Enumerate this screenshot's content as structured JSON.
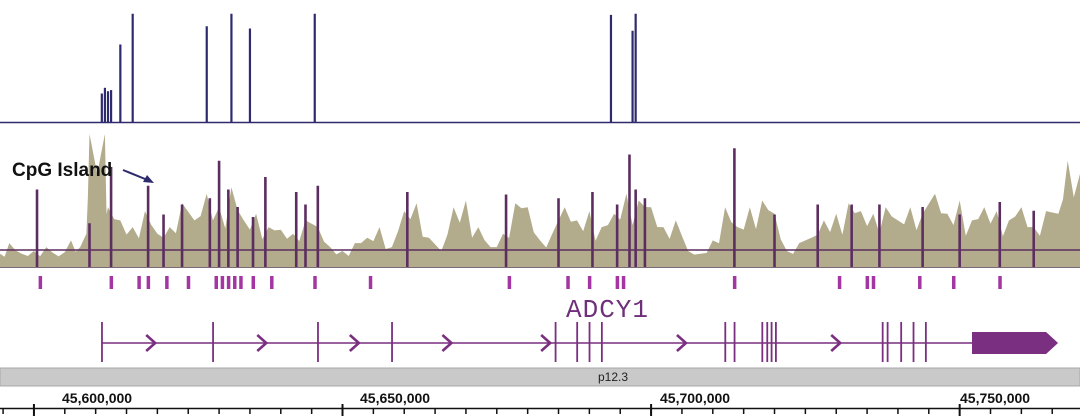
{
  "genome_view": {
    "cpg_label": "CpG Island",
    "gene_label": "ADCY1",
    "cytoband_label": "p12.3",
    "coordinates": [
      "45,600,000",
      "45,650,000",
      "45,700,000",
      "45,750,000"
    ],
    "coordinate_values": [
      45600000,
      45650000,
      45700000,
      45750000
    ],
    "view_range": [
      45594500,
      45769500
    ],
    "colors": {
      "top_track": "#2e2a6e",
      "coverage_fill": "#b2ab8c",
      "signal": "#5c2e60",
      "gene": "#7a2f80",
      "marker": "#a436a4",
      "cytoband": "#c9c9c9"
    }
  },
  "chart_data": {
    "type": "genome_tracks",
    "top_track_peaks": [
      {
        "pos": 45611000,
        "level": 0.25
      },
      {
        "pos": 45611500,
        "level": 0.3
      },
      {
        "pos": 45612000,
        "level": 0.27
      },
      {
        "pos": 45612500,
        "level": 0.28
      },
      {
        "pos": 45614000,
        "level": 0.68
      },
      {
        "pos": 45616000,
        "level": 0.95
      },
      {
        "pos": 45628000,
        "level": 0.84
      },
      {
        "pos": 45632000,
        "level": 0.95
      },
      {
        "pos": 45635000,
        "level": 0.82
      },
      {
        "pos": 45645500,
        "level": 0.95
      },
      {
        "pos": 45693500,
        "level": 0.94
      },
      {
        "pos": 45697000,
        "level": 0.8
      },
      {
        "pos": 45697500,
        "level": 0.95
      }
    ],
    "coverage_profile": [
      [
        45594500,
        0.1
      ],
      [
        45596000,
        0.18
      ],
      [
        45598000,
        0.1
      ],
      [
        45600000,
        0.12
      ],
      [
        45602000,
        0.15
      ],
      [
        45604000,
        0.08
      ],
      [
        45606000,
        0.2
      ],
      [
        45607500,
        0.15
      ],
      [
        45608500,
        0.25
      ],
      [
        45609000,
        1.0
      ],
      [
        45611500,
        1.0
      ],
      [
        45612000,
        0.45
      ],
      [
        45614000,
        0.35
      ],
      [
        45616000,
        0.3
      ],
      [
        45618000,
        0.42
      ],
      [
        45620000,
        0.25
      ],
      [
        45622000,
        0.3
      ],
      [
        45624000,
        0.48
      ],
      [
        45626000,
        0.35
      ],
      [
        45628000,
        0.55
      ],
      [
        45630000,
        0.45
      ],
      [
        45632000,
        0.6
      ],
      [
        45634000,
        0.35
      ],
      [
        45636000,
        0.4
      ],
      [
        45638000,
        0.3
      ],
      [
        45640000,
        0.28
      ],
      [
        45642000,
        0.25
      ],
      [
        45644000,
        0.35
      ],
      [
        45646000,
        0.3
      ],
      [
        45648000,
        0.15
      ],
      [
        45650000,
        0.12
      ],
      [
        45652000,
        0.18
      ],
      [
        45654000,
        0.22
      ],
      [
        45656000,
        0.3
      ],
      [
        45658000,
        0.15
      ],
      [
        45660000,
        0.42
      ],
      [
        45662000,
        0.48
      ],
      [
        45664000,
        0.22
      ],
      [
        45666000,
        0.12
      ],
      [
        45668000,
        0.45
      ],
      [
        45670000,
        0.5
      ],
      [
        45672000,
        0.3
      ],
      [
        45674000,
        0.15
      ],
      [
        45676000,
        0.25
      ],
      [
        45678000,
        0.48
      ],
      [
        45680000,
        0.45
      ],
      [
        45682000,
        0.2
      ],
      [
        45684000,
        0.25
      ],
      [
        45686000,
        0.45
      ],
      [
        45688000,
        0.35
      ],
      [
        45690000,
        0.42
      ],
      [
        45692000,
        0.3
      ],
      [
        45694000,
        0.4
      ],
      [
        45696000,
        0.55
      ],
      [
        45698000,
        0.5
      ],
      [
        45700000,
        0.45
      ],
      [
        45702000,
        0.3
      ],
      [
        45704000,
        0.35
      ],
      [
        45706000,
        0.12
      ],
      [
        45708000,
        0.1
      ],
      [
        45710000,
        0.2
      ],
      [
        45712000,
        0.45
      ],
      [
        45714000,
        0.3
      ],
      [
        45716000,
        0.45
      ],
      [
        45718000,
        0.5
      ],
      [
        45720000,
        0.4
      ],
      [
        45722000,
        0.12
      ],
      [
        45724000,
        0.18
      ],
      [
        45726000,
        0.22
      ],
      [
        45728000,
        0.35
      ],
      [
        45730000,
        0.4
      ],
      [
        45732000,
        0.48
      ],
      [
        45734000,
        0.42
      ],
      [
        45736000,
        0.4
      ],
      [
        45738000,
        0.45
      ],
      [
        45740000,
        0.35
      ],
      [
        45742000,
        0.45
      ],
      [
        45744000,
        0.4
      ],
      [
        45746000,
        0.55
      ],
      [
        45748000,
        0.4
      ],
      [
        45750000,
        0.5
      ],
      [
        45752000,
        0.35
      ],
      [
        45754000,
        0.45
      ],
      [
        45756000,
        0.42
      ],
      [
        45758000,
        0.35
      ],
      [
        45760000,
        0.45
      ],
      [
        45762000,
        0.3
      ],
      [
        45764000,
        0.42
      ],
      [
        45766000,
        0.4
      ],
      [
        45767500,
        0.8
      ],
      [
        45769500,
        0.7
      ]
    ],
    "signal_spikes": [
      {
        "pos": 45600500,
        "level": 0.62
      },
      {
        "pos": 45609000,
        "level": 0.35
      },
      {
        "pos": 45612500,
        "level": 0.8
      },
      {
        "pos": 45618500,
        "level": 0.65
      },
      {
        "pos": 45621000,
        "level": 0.42
      },
      {
        "pos": 45624000,
        "level": 0.5
      },
      {
        "pos": 45628500,
        "level": 0.55
      },
      {
        "pos": 45630000,
        "level": 0.85
      },
      {
        "pos": 45631500,
        "level": 0.62
      },
      {
        "pos": 45633000,
        "level": 0.48
      },
      {
        "pos": 45635500,
        "level": 0.4
      },
      {
        "pos": 45637500,
        "level": 0.72
      },
      {
        "pos": 45642500,
        "level": 0.6
      },
      {
        "pos": 45644000,
        "level": 0.5
      },
      {
        "pos": 45646000,
        "level": 0.65
      },
      {
        "pos": 45660500,
        "level": 0.6
      },
      {
        "pos": 45676500,
        "level": 0.58
      },
      {
        "pos": 45685000,
        "level": 0.55
      },
      {
        "pos": 45690500,
        "level": 0.6
      },
      {
        "pos": 45694500,
        "level": 0.5
      },
      {
        "pos": 45696500,
        "level": 0.9
      },
      {
        "pos": 45697500,
        "level": 0.62
      },
      {
        "pos": 45699000,
        "level": 0.55
      },
      {
        "pos": 45713500,
        "level": 0.95
      },
      {
        "pos": 45720000,
        "level": 0.42
      },
      {
        "pos": 45727000,
        "level": 0.5
      },
      {
        "pos": 45732500,
        "level": 0.5
      },
      {
        "pos": 45737000,
        "level": 0.5
      },
      {
        "pos": 45744000,
        "level": 0.48
      },
      {
        "pos": 45750000,
        "level": 0.42
      },
      {
        "pos": 45756500,
        "level": 0.52
      },
      {
        "pos": 45762000,
        "level": 0.45
      }
    ],
    "marker_positions": [
      45601000,
      45612500,
      45617000,
      45618500,
      45621500,
      45625000,
      45629500,
      45630500,
      45631500,
      45632500,
      45633500,
      45635500,
      45638500,
      45645500,
      45654500,
      45677000,
      45686500,
      45690000,
      45694500,
      45695500,
      45713500,
      45730500,
      45735000,
      45736000,
      45743500,
      45749000,
      45756500
    ],
    "gene": {
      "name": "ADCY1",
      "start": 45611000,
      "end": 45764000,
      "strand": "+",
      "exons": [
        [
          45611000,
          45611200
        ],
        [
          45629000,
          45629200
        ],
        [
          45646000,
          45646200
        ],
        [
          45658000,
          45658200
        ],
        [
          45684500,
          45684700
        ],
        [
          45688000,
          45688200
        ],
        [
          45690000,
          45690200
        ],
        [
          45692000,
          45692200
        ],
        [
          45712000,
          45712200
        ],
        [
          45713500,
          45713700
        ],
        [
          45718000,
          45718200
        ],
        [
          45718800,
          45719000
        ],
        [
          45719500,
          45719700
        ],
        [
          45720200,
          45720400
        ],
        [
          45737500,
          45737700
        ],
        [
          45738300,
          45738500
        ],
        [
          45740500,
          45740700
        ],
        [
          45742500,
          45742700
        ],
        [
          45744500,
          45744700
        ],
        [
          45752000,
          45764000
        ]
      ],
      "direction_arrows": [
        45619000,
        45637000,
        45652000,
        45667000,
        45683000,
        45705000,
        45730000
      ]
    }
  }
}
